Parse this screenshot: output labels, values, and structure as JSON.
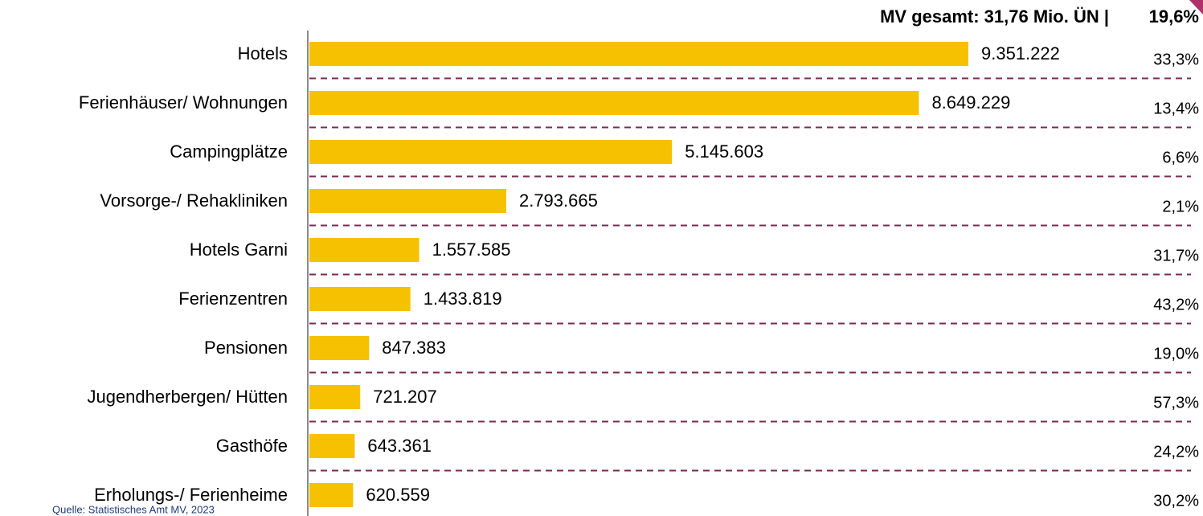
{
  "chart_data": {
    "type": "bar",
    "orientation": "horizontal",
    "title": "MV gesamt:  31,76 Mio. ÜN |",
    "title_share": "19,6%",
    "source": "Quelle: Statistisches Amt MV, 2023",
    "color": "#f6c100",
    "categories": [
      "Hotels",
      "Ferienhäuser/ Wohnungen",
      "Campingplätze",
      "Vorsorge-/ Rehakliniken",
      "Hotels Garni",
      "Ferienzentren",
      "Pensionen",
      "Jugendherbergen/ Hütten",
      "Gasthöfe",
      "Erholungs-/ Ferienheime"
    ],
    "values": [
      9351222,
      8649229,
      5145603,
      2793665,
      1557585,
      1433819,
      847383,
      721207,
      643361,
      620559
    ],
    "value_labels": [
      "9.351.222",
      "8.649.229",
      "5.145.603",
      "2.793.665",
      "1.557.585",
      "1.433.819",
      "847.383",
      "721.207",
      "643.361",
      "620.559"
    ],
    "shares": [
      33.3,
      13.4,
      6.6,
      2.1,
      31.7,
      43.2,
      19.0,
      57.3,
      24.2,
      30.2
    ],
    "share_labels": [
      "33,3%",
      "13,4%",
      "6,6%",
      "2,1%",
      "31,7%",
      "43,2%",
      "19,0%",
      "57,3%",
      "24,2%",
      "30,2%"
    ],
    "separator_color": "#7a2a52"
  }
}
